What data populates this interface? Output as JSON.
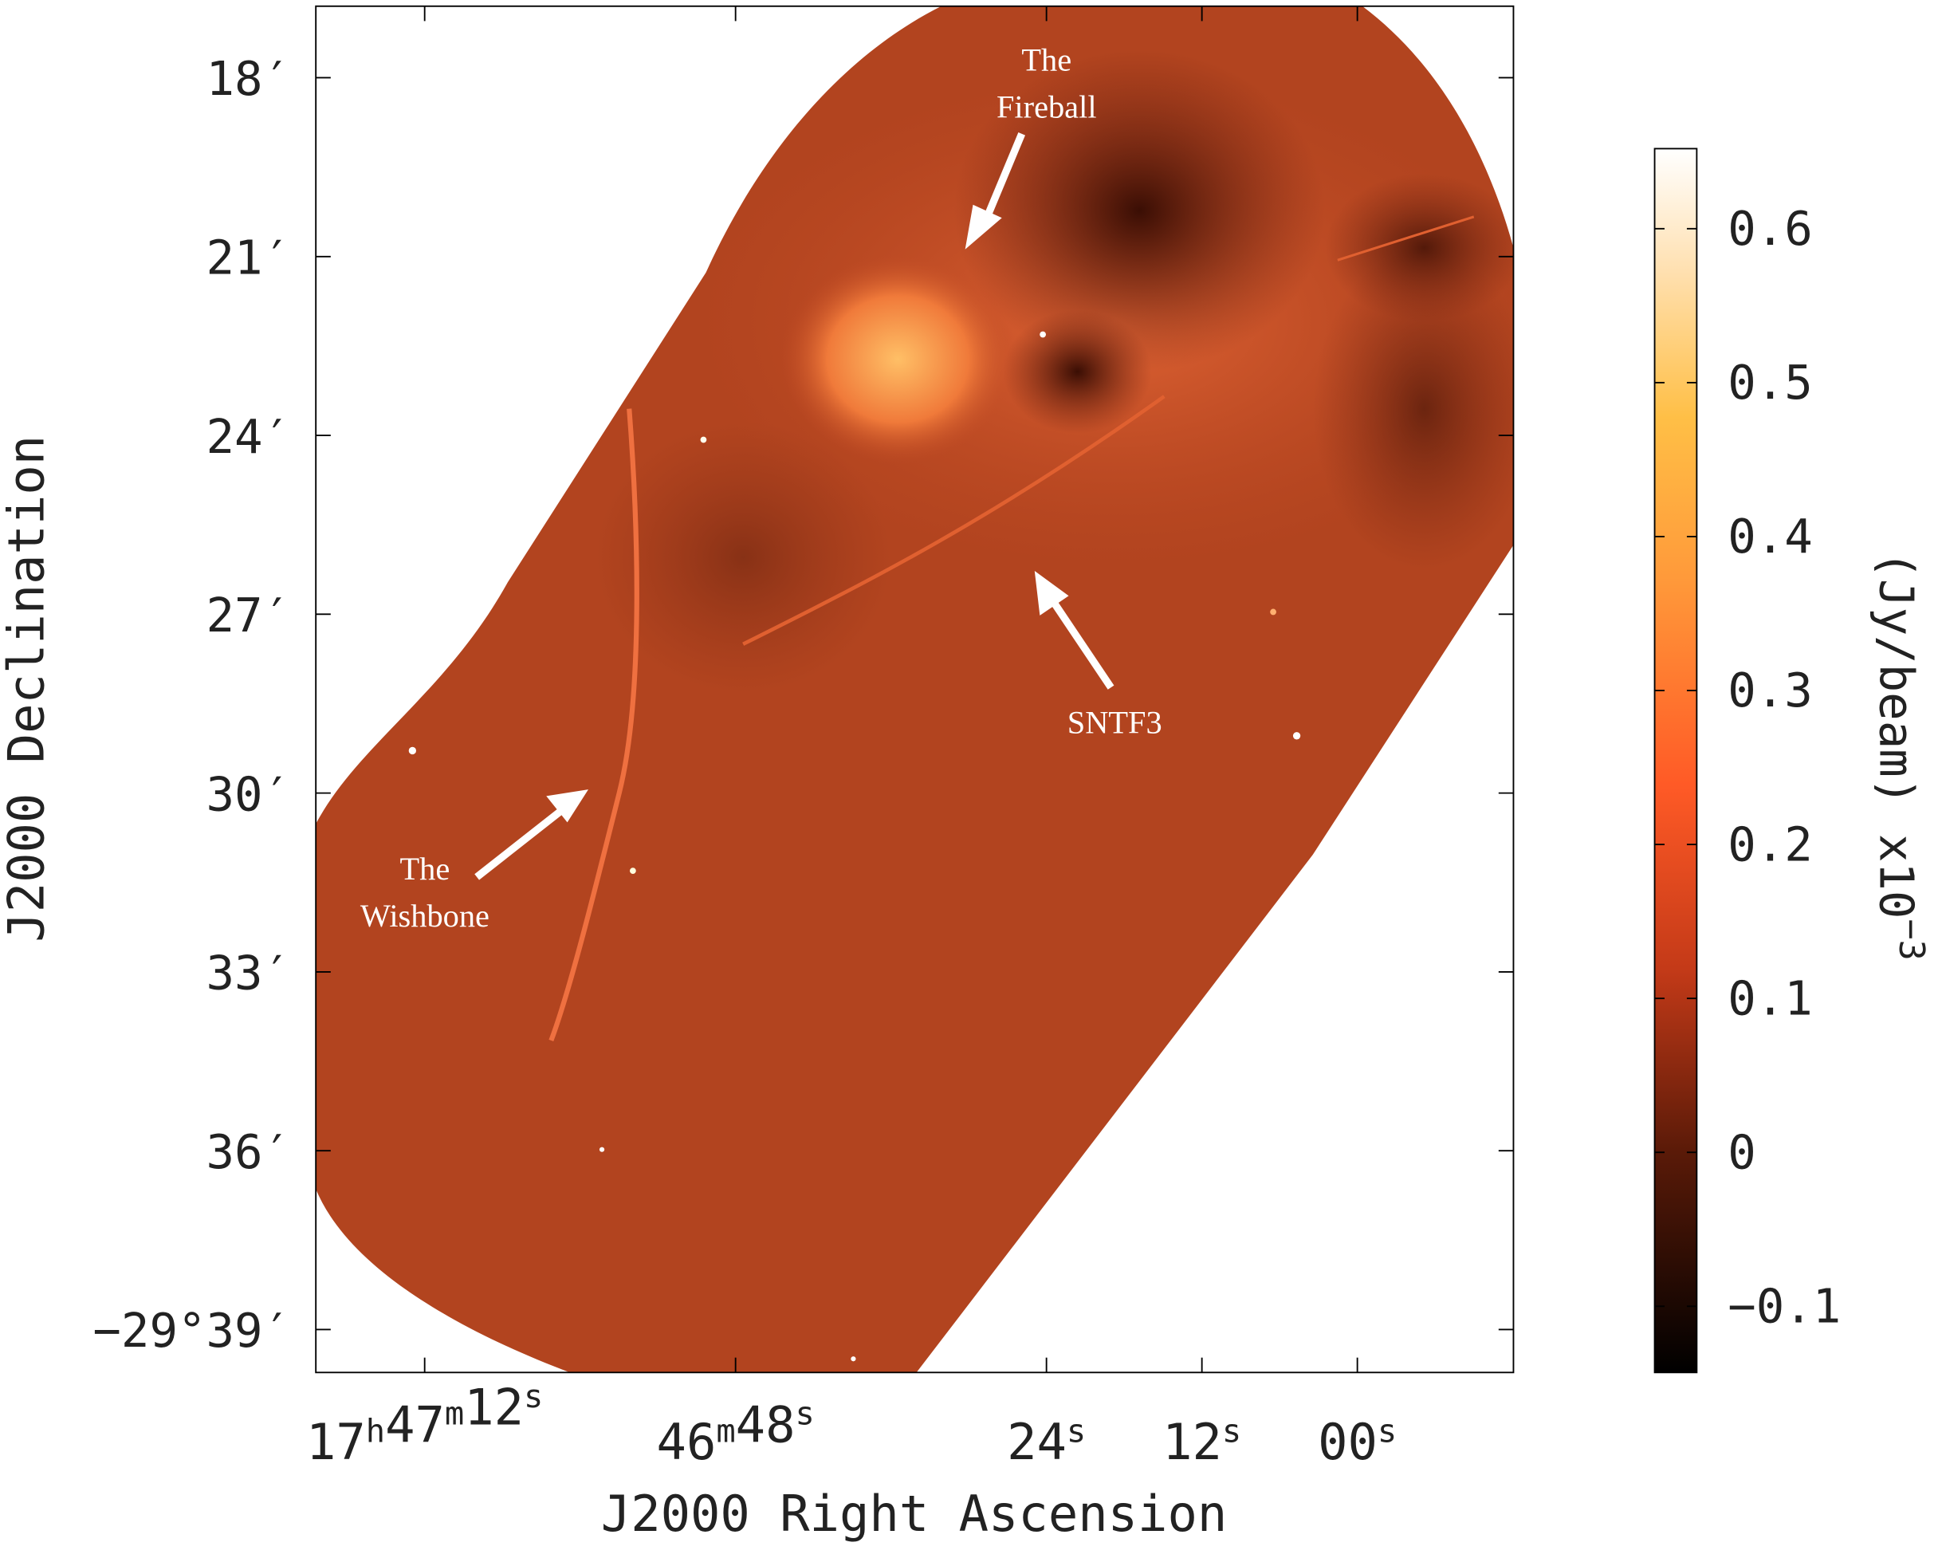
{
  "chart_data": {
    "type": "image",
    "title_x": "J2000 Right Ascension",
    "title_y": "J2000 Declination",
    "xlim": [
      80.4,
      -12.05
    ],
    "xticks": [
      {
        "value": 72,
        "label": "17h47m12s"
      },
      {
        "value": 48,
        "label": "46m48s"
      },
      {
        "value": 24,
        "label": "24s"
      },
      {
        "value": 12,
        "label": "12s"
      },
      {
        "value": 0,
        "label": "00s"
      }
    ],
    "ylim": [
      -29.662,
      -29.28
    ],
    "yticks": [
      {
        "value": -29.3,
        "label": "18′"
      },
      {
        "value": -29.35,
        "label": "21′"
      },
      {
        "value": -29.4,
        "label": "24′"
      },
      {
        "value": -29.45,
        "label": "27′"
      },
      {
        "value": -29.5,
        "label": "30′"
      },
      {
        "value": -29.55,
        "label": "33′"
      },
      {
        "value": -29.6,
        "label": "36′"
      },
      {
        "value": -29.65,
        "label": "−29°39′"
      }
    ],
    "colorbar": {
      "label": "(Jy/beam) x10−3",
      "clim": [
        -0.143,
        0.652
      ],
      "ticks": [
        {
          "value": 0.6,
          "label": "0.6"
        },
        {
          "value": 0.5,
          "label": "0.5"
        },
        {
          "value": 0.4,
          "label": "0.4"
        },
        {
          "value": 0.3,
          "label": "0.3"
        },
        {
          "value": 0.2,
          "label": "0.2"
        },
        {
          "value": 0.1,
          "label": "0.1"
        },
        0,
        {
          "value": -0.1,
          "label": "−0.1"
        }
      ]
    },
    "annotations": [
      {
        "lines": [
          "The",
          "Fireball"
        ]
      },
      {
        "lines": [
          "SNTF3"
        ]
      },
      {
        "lines": [
          "The",
          "Wishbone"
        ]
      }
    ]
  }
}
